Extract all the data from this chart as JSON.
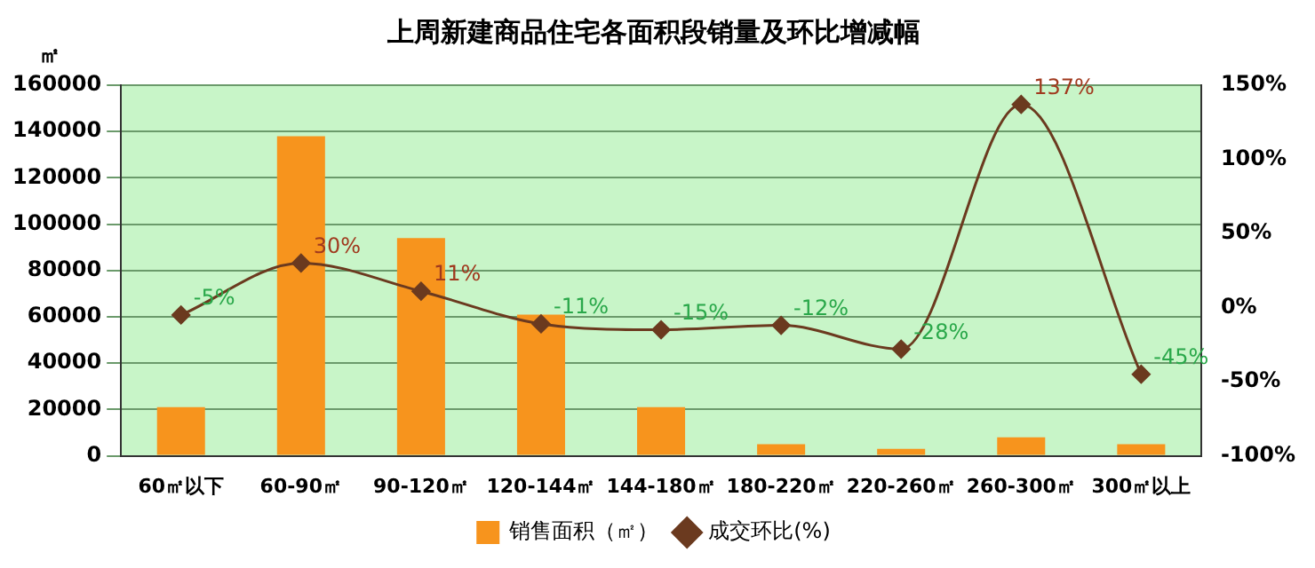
{
  "chart_data": {
    "type": "bar",
    "title": "上周新建商品住宅各面积段销量及环比增减幅",
    "ylabel": "㎡",
    "categories": [
      "60㎡以下",
      "60-90㎡",
      "90-120㎡",
      "120-144㎡",
      "144-180㎡",
      "180-220㎡",
      "220-260㎡",
      "260-300㎡",
      "300㎡以上"
    ],
    "series": [
      {
        "name": "销售面积（㎡）",
        "color": "#f7941d",
        "values": [
          21000,
          138000,
          94000,
          61000,
          21000,
          5000,
          3000,
          8000,
          5000
        ]
      },
      {
        "name": "成交环比(%)",
        "type": "line",
        "axis": "y2",
        "color": "#6b3a1f",
        "marker": "diamond",
        "values": [
          -5,
          30,
          11,
          -11,
          -15,
          -12,
          -28,
          137,
          -45
        ],
        "value_labels": [
          "-5%",
          "30%",
          "11%",
          "-11%",
          "-15%",
          "-12%",
          "-28%",
          "137%",
          "-45%"
        ]
      }
    ],
    "ylim": [
      0,
      160000
    ],
    "yticks": [
      0,
      20000,
      40000,
      60000,
      80000,
      100000,
      120000,
      140000,
      160000
    ],
    "y2lim": [
      -100,
      150
    ],
    "y2ticks": [
      {
        "value": -100,
        "label": "-100%"
      },
      {
        "value": -50,
        "label": "-50%"
      },
      {
        "value": 0,
        "label": "0%"
      },
      {
        "value": 50,
        "label": "50%"
      },
      {
        "value": 100,
        "label": "100%"
      },
      {
        "value": 150,
        "label": "150%"
      }
    ],
    "grid": "y",
    "legend": "bottom"
  }
}
